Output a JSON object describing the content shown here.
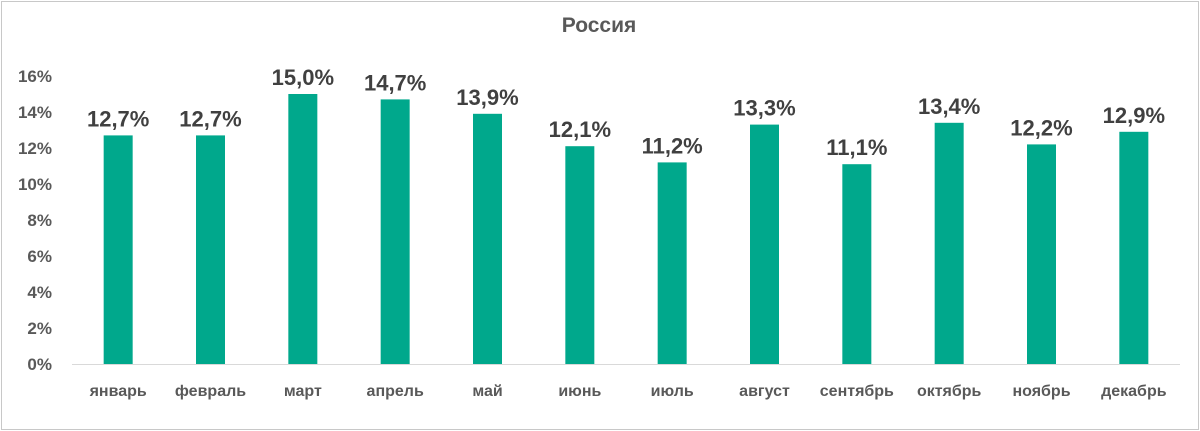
{
  "chart_data": {
    "type": "bar",
    "title": "Россия",
    "xlabel": "",
    "ylabel": "",
    "categories": [
      "январь",
      "февраль",
      "март",
      "апрель",
      "май",
      "июнь",
      "июль",
      "август",
      "сентябрь",
      "октябрь",
      "ноябрь",
      "декабрь"
    ],
    "values": [
      12.7,
      12.7,
      15.0,
      14.7,
      13.9,
      12.1,
      11.2,
      13.3,
      11.1,
      13.4,
      12.2,
      12.9
    ],
    "data_labels": [
      "12,7%",
      "12,7%",
      "15,0%",
      "14,7%",
      "13,9%",
      "12,1%",
      "11,2%",
      "13,3%",
      "11,1%",
      "13,4%",
      "12,2%",
      "12,9%"
    ],
    "label_colors": [
      "#404040",
      "#404040",
      "#ff0000",
      "#404040",
      "#404040",
      "#404040",
      "#000000",
      "#404040",
      "#00cccc",
      "#404040",
      "#404040",
      "#404040"
    ],
    "bar_color": "#00a88c",
    "ylim": [
      0,
      16
    ],
    "yticks": [
      0,
      2,
      4,
      6,
      8,
      10,
      12,
      14,
      16
    ],
    "ytick_labels": [
      "0%",
      "2%",
      "4%",
      "6%",
      "8%",
      "10%",
      "12%",
      "14%",
      "16%"
    ],
    "grid": false,
    "legend": "none"
  }
}
